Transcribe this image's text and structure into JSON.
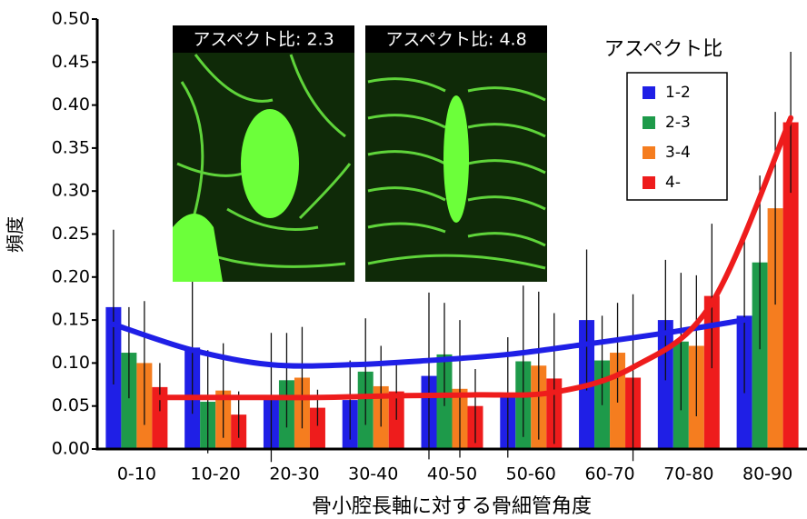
{
  "chart_data": {
    "type": "bar",
    "x_label": "骨小腔長軸に対する骨細管角度",
    "y_label": "頻度",
    "legend_title": "アスペクト比",
    "inset_labels": [
      "アスペクト比: 2.3",
      "アスペクト比: 4.8"
    ],
    "categories": [
      "0-10",
      "10-20",
      "20-30",
      "30-40",
      "40-50",
      "50-60",
      "60-70",
      "70-80",
      "80-90"
    ],
    "ylim": [
      0,
      0.5
    ],
    "yticks": [
      {
        "value": 0,
        "label": "0.00"
      },
      {
        "value": 0.05,
        "label": "0.05"
      },
      {
        "value": 0.1,
        "label": "0.10"
      },
      {
        "value": 0.15,
        "label": "0.15"
      },
      {
        "value": 0.2,
        "label": "0.20"
      },
      {
        "value": 0.25,
        "label": "0.25"
      },
      {
        "value": 0.3,
        "label": "0.30"
      },
      {
        "value": 0.35,
        "label": "0.35"
      },
      {
        "value": 0.4,
        "label": "0.40"
      },
      {
        "value": 0.45,
        "label": "0.45"
      },
      {
        "value": 0.5,
        "label": "0.50"
      }
    ],
    "series": [
      {
        "name": "1-2",
        "color": "#1f1fe6",
        "values": [
          0.165,
          0.118,
          0.06,
          0.057,
          0.085,
          0.06,
          0.15,
          0.15,
          0.155
        ],
        "errors": [
          0.09,
          0.077,
          0.075,
          0.046,
          0.097,
          0.07,
          0.082,
          0.07,
          0.09
        ],
        "trend": [
          0.145,
          0.115,
          0.098,
          0.098,
          0.103,
          0.11,
          0.122,
          0.135,
          0.15
        ]
      },
      {
        "name": "2-3",
        "color": "#1e9a4a",
        "values": [
          0.112,
          0.055,
          0.08,
          0.09,
          0.11,
          0.102,
          0.103,
          0.125,
          0.217
        ],
        "errors": [
          0.053,
          0.06,
          0.055,
          0.062,
          0.06,
          0.088,
          0.052,
          0.08,
          0.101
        ]
      },
      {
        "name": "3-4",
        "color": "#f57d1f",
        "values": [
          0.1,
          0.068,
          0.083,
          0.073,
          0.07,
          0.097,
          0.112,
          0.12,
          0.28
        ],
        "errors": [
          0.072,
          0.055,
          0.059,
          0.047,
          0.08,
          0.086,
          0.058,
          0.082,
          0.112
        ]
      },
      {
        "name": "4-",
        "color": "#ee1c1c",
        "values": [
          0.072,
          0.04,
          0.048,
          0.067,
          0.05,
          0.082,
          0.083,
          0.178,
          0.38
        ],
        "errors": [
          0.028,
          0.027,
          0.021,
          0.033,
          0.043,
          0.076,
          0.097,
          0.084,
          0.082
        ],
        "trend": [
          0.06,
          0.06,
          0.06,
          0.062,
          0.063,
          0.066,
          0.095,
          0.17,
          0.385
        ]
      }
    ]
  }
}
